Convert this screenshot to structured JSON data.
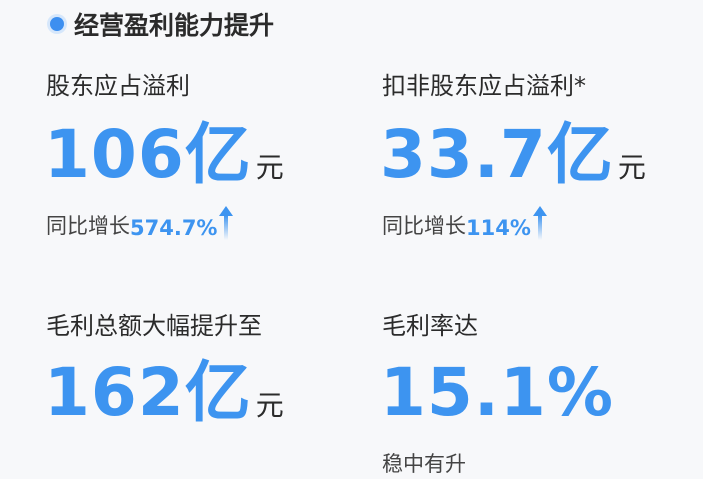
{
  "section_title": "经营盈利能力提升",
  "accent_color": "#3d94f0",
  "metrics": [
    {
      "label": "股东应占溢利",
      "value": "106亿",
      "unit": "元",
      "sub_prefix": "同比增长",
      "sub_value": "574.7%",
      "trend": "arrow-up-icon"
    },
    {
      "label": "扣非股东应占溢利*",
      "value": "33.7亿",
      "unit": "元",
      "sub_prefix": "同比增长",
      "sub_value": "114%",
      "trend": "arrow-up-icon"
    },
    {
      "label": "毛利总额大幅提升至",
      "value": "162亿",
      "unit": "元"
    },
    {
      "label": "毛利率达",
      "value": "15.1%",
      "note": "稳中有升"
    }
  ]
}
